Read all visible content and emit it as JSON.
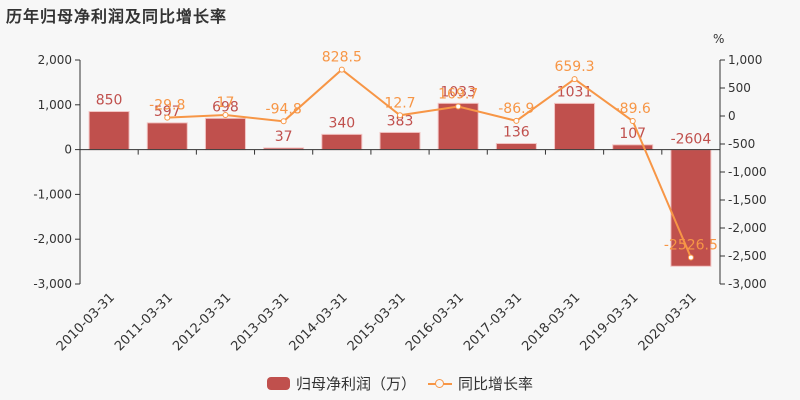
{
  "title": "历年归母净利润及同比增长率",
  "colors": {
    "bar": "#c0504d",
    "bar_border": "#f2c4c3",
    "line": "#f79646",
    "axis": "#333333",
    "background": "#f7f7f7"
  },
  "axes": {
    "left": {
      "ticks": [
        "2,000",
        "1,000",
        "0",
        "-1,000",
        "-2,000",
        "-3,000"
      ],
      "values": [
        2000,
        1000,
        0,
        -1000,
        -2000,
        -3000
      ]
    },
    "right": {
      "unit": "%",
      "ticks": [
        "1,000",
        "500",
        "0",
        "-500",
        "-1,000",
        "-1,500",
        "-2,000",
        "-2,500",
        "-3,000"
      ],
      "values": [
        1000,
        500,
        0,
        -500,
        -1000,
        -1500,
        -2000,
        -2500,
        -3000
      ]
    }
  },
  "legend": {
    "bar_label": "归母净利润（万）",
    "line_label": "同比增长率"
  },
  "chart_data": {
    "type": "bar",
    "title": "历年归母净利润及同比增长率",
    "categories": [
      "2010-03-31",
      "2011-03-31",
      "2012-03-31",
      "2013-03-31",
      "2014-03-31",
      "2015-03-31",
      "2016-03-31",
      "2017-03-31",
      "2018-03-31",
      "2019-03-31",
      "2020-03-31"
    ],
    "series": [
      {
        "name": "归母净利润（万）",
        "type": "bar",
        "axis": "left",
        "values": [
          850,
          597,
          698,
          37,
          340,
          383,
          1033,
          136,
          1031,
          107,
          -2604
        ]
      },
      {
        "name": "同比增长率",
        "type": "line",
        "axis": "right",
        "values": [
          null,
          -29.8,
          17,
          -94.8,
          828.5,
          12.7,
          169.7,
          -86.9,
          659.3,
          -89.6,
          -2526.5
        ]
      }
    ],
    "xlabel": "",
    "ylabel": "",
    "ylabel_right": "%",
    "ylim": [
      -3000,
      2000
    ],
    "ylim_right": [
      -3000,
      1000
    ],
    "grid": false,
    "legend_position": "bottom"
  }
}
